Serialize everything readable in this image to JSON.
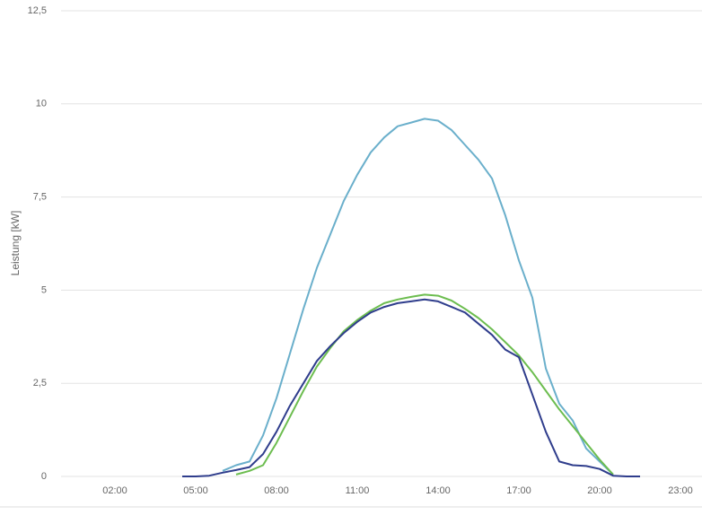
{
  "chart_data": {
    "type": "line",
    "y_label": "Leistung [kW]",
    "x": [
      4.5,
      5,
      5.5,
      6,
      6.5,
      7,
      7.5,
      8,
      8.5,
      9,
      9.5,
      10,
      10.5,
      11,
      11.5,
      12,
      12.5,
      13,
      13.5,
      14,
      14.5,
      15,
      15.5,
      16,
      16.5,
      17,
      17.5,
      18,
      18.5,
      19,
      19.5,
      20,
      20.5,
      21,
      21.5
    ],
    "series": [
      {
        "color": "#6aafcb",
        "values": [
          null,
          null,
          null,
          0.15,
          0.3,
          0.4,
          1.1,
          2.1,
          3.3,
          4.5,
          5.6,
          6.5,
          7.4,
          8.1,
          8.7,
          9.1,
          9.4,
          9.5,
          9.6,
          9.55,
          9.3,
          8.9,
          8.5,
          8.0,
          7.0,
          5.8,
          4.8,
          2.9,
          1.95,
          1.5,
          0.75,
          0.4,
          0.05,
          null,
          null
        ]
      },
      {
        "color": "#6cbd4f",
        "values": [
          null,
          null,
          null,
          null,
          0.05,
          0.15,
          0.3,
          0.9,
          1.6,
          2.3,
          2.95,
          3.45,
          3.9,
          4.2,
          4.45,
          4.65,
          4.75,
          4.82,
          4.88,
          4.85,
          4.72,
          4.5,
          4.25,
          3.95,
          3.6,
          3.25,
          2.8,
          2.3,
          1.8,
          1.35,
          0.9,
          0.45,
          0.05,
          null,
          null
        ]
      },
      {
        "color": "#2f3d8c",
        "values": [
          0,
          0,
          0.02,
          0.1,
          0.17,
          0.25,
          0.6,
          1.2,
          1.9,
          2.5,
          3.1,
          3.5,
          3.85,
          4.15,
          4.4,
          4.55,
          4.65,
          4.7,
          4.75,
          4.7,
          4.55,
          4.4,
          4.1,
          3.8,
          3.4,
          3.2,
          2.2,
          1.2,
          0.4,
          0.3,
          0.28,
          0.2,
          0.02,
          0,
          0
        ]
      }
    ],
    "xlim": [
      0,
      23.8
    ],
    "xticks": [
      {
        "value": 2,
        "label": "02:00"
      },
      {
        "value": 5,
        "label": "05:00"
      },
      {
        "value": 8,
        "label": "08:00"
      },
      {
        "value": 11,
        "label": "11:00"
      },
      {
        "value": 14,
        "label": "14:00"
      },
      {
        "value": 17,
        "label": "17:00"
      },
      {
        "value": 20,
        "label": "20:00"
      },
      {
        "value": 23,
        "label": "23:00"
      }
    ],
    "ylim": [
      0,
      12.5
    ],
    "yticks": [
      0,
      {
        "value": 2.5,
        "label": "2,5"
      },
      5,
      {
        "value": 7.5,
        "label": "7,5"
      },
      10,
      {
        "value": 12.5,
        "label": "12,5"
      }
    ],
    "grid": true
  }
}
